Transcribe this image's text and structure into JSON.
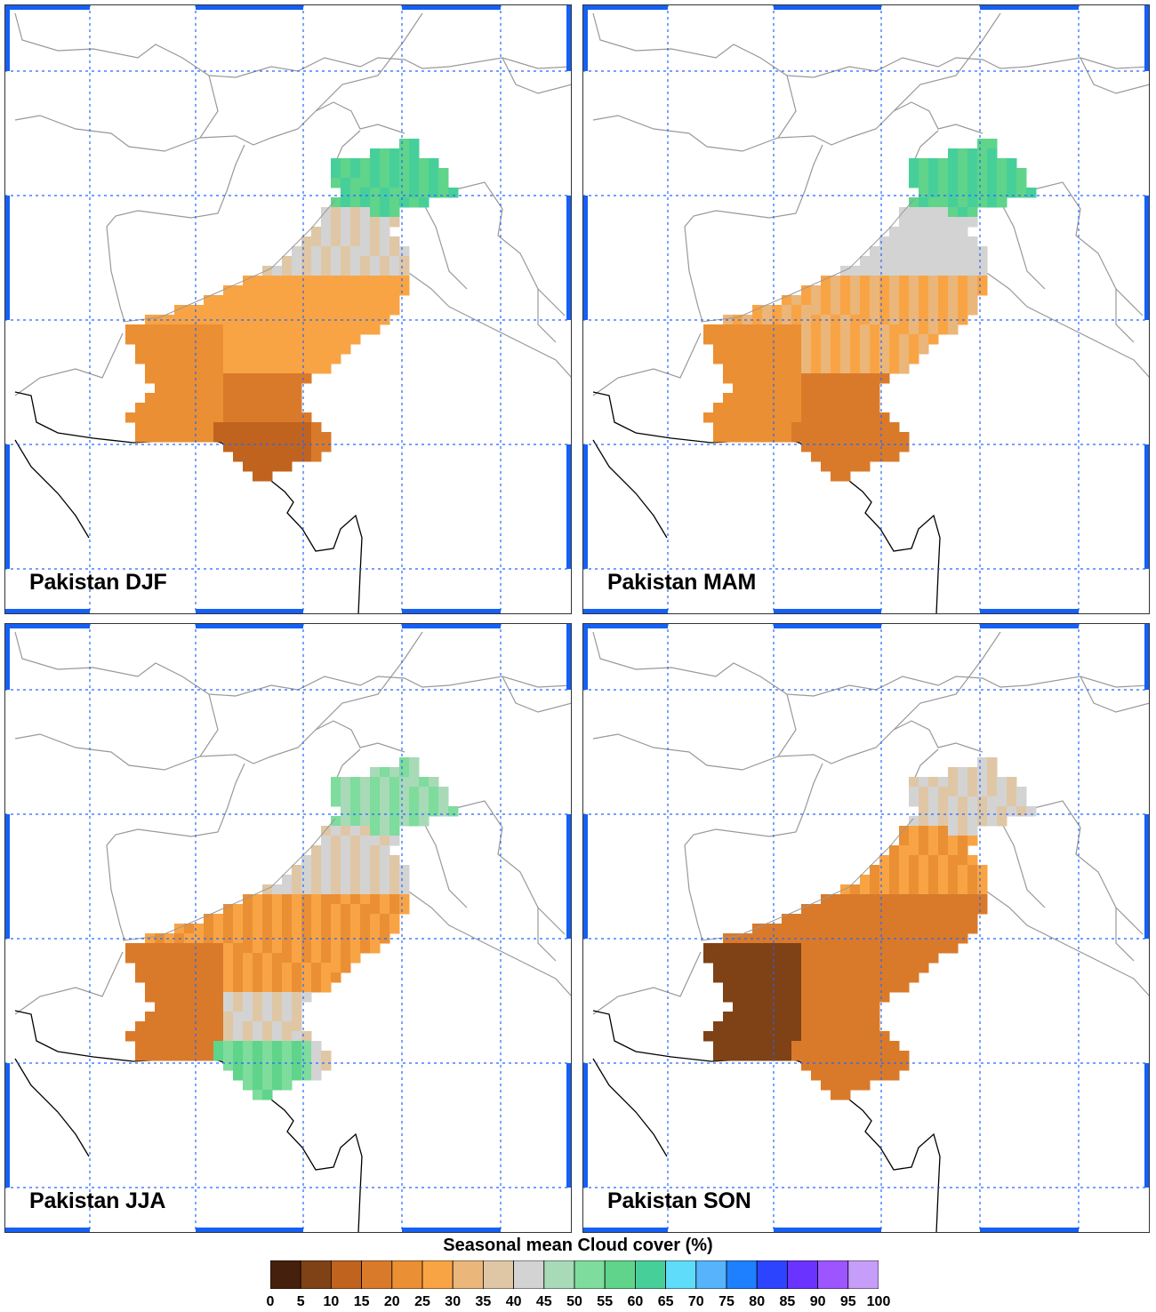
{
  "figure": {
    "colorbar_title": "Seasonal mean Cloud cover (%)",
    "colorbar_ticks": [
      "0",
      "5",
      "10",
      "15",
      "20",
      "25",
      "30",
      "35",
      "40",
      "45",
      "50",
      "55",
      "60",
      "65",
      "70",
      "75",
      "80",
      "85",
      "90",
      "95",
      "100"
    ],
    "colorbar_colors": [
      "#45200d",
      "#7f4116",
      "#c0631f",
      "#d97a2b",
      "#ea8f33",
      "#f9a444",
      "#ebb679",
      "#dfc7a5",
      "#d3d3d3",
      "#a8dab7",
      "#7edc9c",
      "#5fd48a",
      "#47cf9a",
      "#5fdcfa",
      "#57b3fb",
      "#1e80ff",
      "#2d44ff",
      "#6a33ff",
      "#9c55ff",
      "#c79dfa"
    ]
  },
  "chart_data": [
    {
      "type": "heatmap",
      "title": "Pakistan DJF",
      "season": "DJF",
      "value_unit": "%",
      "colorbar_range": [
        0,
        100
      ],
      "zones": {
        "north": "55-65",
        "upper": "35-45",
        "central": "25-30",
        "southwest": "20-25",
        "south": "15-20",
        "coast": "10-15"
      }
    },
    {
      "type": "heatmap",
      "title": "Pakistan MAM",
      "season": "MAM",
      "value_unit": "%",
      "colorbar_range": [
        0,
        100
      ],
      "zones": {
        "north": "55-65",
        "upper": "40-45",
        "central": "25-35",
        "southwest": "20-25",
        "south": "15-20",
        "coast": "15-20"
      }
    },
    {
      "type": "heatmap",
      "title": "Pakistan JJA",
      "season": "JJA",
      "value_unit": "%",
      "colorbar_range": [
        0,
        100
      ],
      "zones": {
        "north": "45-55",
        "upper": "35-45",
        "central": "20-30",
        "southwest": "15-20",
        "south": "35-45",
        "coast": "50-60"
      }
    },
    {
      "type": "heatmap",
      "title": "Pakistan SON",
      "season": "SON",
      "value_unit": "%",
      "colorbar_range": [
        0,
        100
      ],
      "zones": {
        "north": "35-45",
        "upper": "20-30",
        "central": "15-20",
        "southwest": "5-10",
        "south": "15-20",
        "coast": "15-20"
      }
    }
  ]
}
